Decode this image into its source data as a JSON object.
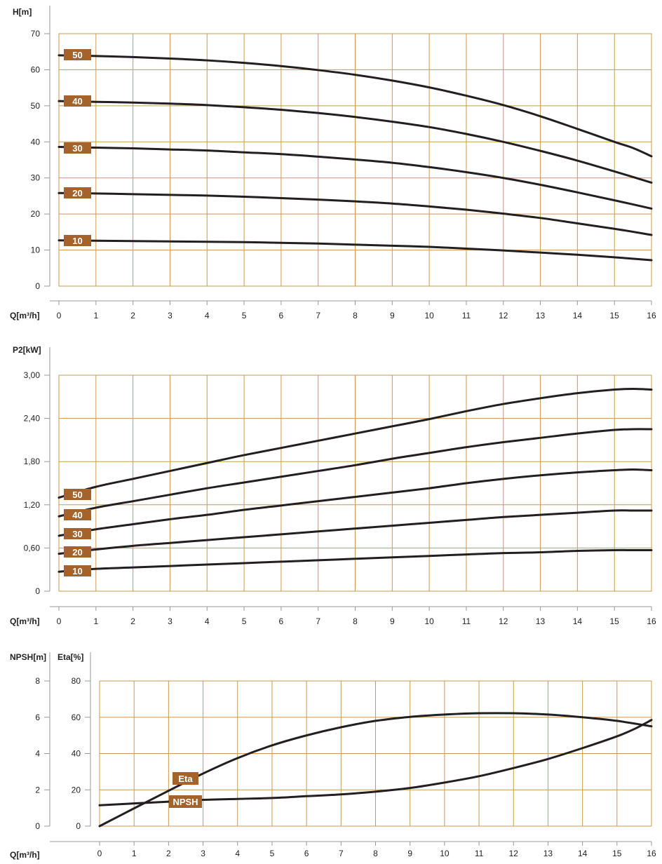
{
  "colors": {
    "grid": "#c89a4e",
    "axis": "#999999",
    "curve": "#231f20",
    "badge": "#a3632a",
    "badge_text": "#ffffff"
  },
  "chart_data": [
    {
      "id": "head",
      "type": "line",
      "title": "",
      "ylabel": "H[m]",
      "xlabel": "Q[m³/h]",
      "xlim": [
        0,
        16
      ],
      "ylim": [
        0,
        70
      ],
      "x_ticks": [
        "0",
        "1",
        "2",
        "3",
        "4",
        "5",
        "6",
        "7",
        "8",
        "9",
        "10",
        "11",
        "12",
        "13",
        "14",
        "15",
        "16"
      ],
      "y_ticks": [
        "0",
        "10",
        "20",
        "30",
        "40",
        "50",
        "60",
        "70"
      ],
      "y_tick_values": [
        0,
        10,
        20,
        30,
        40,
        50,
        60,
        70
      ],
      "series": [
        {
          "name": "50",
          "x": [
            0,
            1,
            2,
            3,
            4,
            5,
            6,
            7,
            8,
            9,
            10,
            11,
            12,
            13,
            14,
            15,
            15.5,
            16
          ],
          "values": [
            64,
            63.8,
            63.5,
            63.1,
            62.6,
            61.9,
            61,
            59.9,
            58.6,
            57,
            55.1,
            52.8,
            50.2,
            47.1,
            43.6,
            40,
            38.3,
            36
          ]
        },
        {
          "name": "40",
          "x": [
            0,
            1,
            2,
            3,
            4,
            5,
            6,
            7,
            8,
            9,
            10,
            11,
            12,
            13,
            14,
            15,
            16
          ],
          "values": [
            51.3,
            51.1,
            50.9,
            50.6,
            50.2,
            49.6,
            48.9,
            48,
            46.9,
            45.6,
            44.1,
            42.2,
            40,
            37.5,
            34.8,
            31.8,
            28.7
          ]
        },
        {
          "name": "30",
          "x": [
            0,
            1,
            2,
            3,
            4,
            5,
            6,
            7,
            8,
            9,
            10,
            11,
            12,
            13,
            14,
            15,
            16
          ],
          "values": [
            38.6,
            38.4,
            38.2,
            37.9,
            37.6,
            37.1,
            36.6,
            35.9,
            35.1,
            34.2,
            33,
            31.6,
            30,
            28.1,
            26,
            23.8,
            21.5
          ]
        },
        {
          "name": "20",
          "x": [
            0,
            1,
            2,
            3,
            4,
            5,
            6,
            7,
            8,
            9,
            10,
            11,
            12,
            13,
            14,
            15,
            16
          ],
          "values": [
            25.8,
            25.7,
            25.5,
            25.3,
            25.1,
            24.8,
            24.4,
            24,
            23.5,
            22.9,
            22.1,
            21.2,
            20.1,
            18.9,
            17.4,
            15.9,
            14.2
          ]
        },
        {
          "name": "10",
          "x": [
            0,
            1,
            2,
            3,
            4,
            5,
            6,
            7,
            8,
            9,
            10,
            11,
            12,
            13,
            14,
            15,
            16
          ],
          "values": [
            12.7,
            12.6,
            12.5,
            12.4,
            12.3,
            12.2,
            12,
            11.8,
            11.5,
            11.2,
            10.9,
            10.4,
            9.9,
            9.3,
            8.7,
            8,
            7.2
          ]
        }
      ],
      "labels": [
        "50",
        "40",
        "30",
        "20",
        "10"
      ]
    },
    {
      "id": "power",
      "type": "line",
      "title": "",
      "ylabel": "P2[kW]",
      "xlabel": "Q[m³/h]",
      "xlim": [
        0,
        16
      ],
      "ylim": [
        0,
        3.0
      ],
      "x_ticks": [
        "0",
        "1",
        "2",
        "3",
        "4",
        "5",
        "6",
        "7",
        "8",
        "9",
        "10",
        "11",
        "12",
        "13",
        "14",
        "15",
        "16"
      ],
      "y_ticks": [
        "0",
        "0,60",
        "1,20",
        "1,80",
        "2,40",
        "3,00"
      ],
      "y_tick_values": [
        0,
        0.6,
        1.2,
        1.8,
        2.4,
        3.0
      ],
      "series": [
        {
          "name": "50",
          "x": [
            0,
            1,
            2,
            3,
            4,
            5,
            6,
            7,
            8,
            9,
            10,
            11,
            12,
            13,
            14,
            15,
            15.5,
            16
          ],
          "values": [
            1.3,
            1.45,
            1.56,
            1.67,
            1.78,
            1.89,
            1.99,
            2.09,
            2.19,
            2.29,
            2.39,
            2.5,
            2.6,
            2.68,
            2.75,
            2.8,
            2.81,
            2.8
          ]
        },
        {
          "name": "40",
          "x": [
            0,
            1,
            2,
            3,
            4,
            5,
            6,
            7,
            8,
            9,
            10,
            11,
            12,
            13,
            14,
            15,
            15.5,
            16
          ],
          "values": [
            1.04,
            1.16,
            1.25,
            1.34,
            1.43,
            1.51,
            1.59,
            1.67,
            1.75,
            1.84,
            1.92,
            2,
            2.07,
            2.13,
            2.19,
            2.24,
            2.25,
            2.25
          ]
        },
        {
          "name": "30",
          "x": [
            0,
            1,
            2,
            3,
            4,
            5,
            6,
            7,
            8,
            9,
            10,
            11,
            12,
            13,
            14,
            15,
            15.5,
            16
          ],
          "values": [
            0.77,
            0.86,
            0.93,
            1,
            1.06,
            1.13,
            1.19,
            1.25,
            1.31,
            1.37,
            1.43,
            1.5,
            1.56,
            1.61,
            1.65,
            1.68,
            1.69,
            1.68
          ]
        },
        {
          "name": "20",
          "x": [
            0,
            1,
            2,
            3,
            4,
            5,
            6,
            7,
            8,
            9,
            10,
            11,
            12,
            13,
            14,
            15,
            15.5,
            16
          ],
          "values": [
            0.52,
            0.58,
            0.63,
            0.67,
            0.71,
            0.75,
            0.79,
            0.83,
            0.87,
            0.91,
            0.95,
            0.99,
            1.03,
            1.06,
            1.09,
            1.12,
            1.12,
            1.12
          ]
        },
        {
          "name": "10",
          "x": [
            0,
            1,
            2,
            3,
            4,
            5,
            6,
            7,
            8,
            9,
            10,
            11,
            12,
            13,
            14,
            15,
            15.5,
            16
          ],
          "values": [
            0.27,
            0.31,
            0.33,
            0.35,
            0.37,
            0.39,
            0.41,
            0.43,
            0.45,
            0.47,
            0.49,
            0.51,
            0.53,
            0.54,
            0.56,
            0.57,
            0.57,
            0.57
          ]
        }
      ],
      "labels": [
        "50",
        "40",
        "30",
        "20",
        "10"
      ]
    },
    {
      "id": "npsh_eta",
      "type": "line",
      "title": "",
      "ylabel_left": "NPSH[m]",
      "ylabel_right": "Eta[%]",
      "xlabel": "Q[m³/h]",
      "xlim": [
        0,
        16
      ],
      "ylim_npsh": [
        0,
        8
      ],
      "ylim_eta": [
        0,
        80
      ],
      "x_ticks": [
        "0",
        "1",
        "2",
        "3",
        "4",
        "5",
        "6",
        "7",
        "8",
        "9",
        "10",
        "11",
        "12",
        "13",
        "14",
        "15",
        "16"
      ],
      "npsh_ticks": [
        "0",
        "2",
        "4",
        "6",
        "8"
      ],
      "npsh_tick_values": [
        0,
        2,
        4,
        6,
        8
      ],
      "eta_ticks": [
        "0",
        "20",
        "40",
        "60",
        "80"
      ],
      "eta_tick_values": [
        0,
        20,
        40,
        60,
        80
      ],
      "series": [
        {
          "name": "Eta",
          "axis": "eta",
          "x": [
            0,
            1,
            2,
            3,
            4,
            5,
            6,
            7,
            8,
            9,
            10,
            11,
            12,
            13,
            14,
            15,
            16
          ],
          "values": [
            0,
            9.8,
            19.5,
            29,
            37.5,
            44.5,
            50,
            54.5,
            58,
            60.2,
            61.5,
            62.2,
            62.2,
            61.5,
            60,
            58,
            55
          ]
        },
        {
          "name": "NPSH",
          "axis": "npsh",
          "x": [
            0,
            1,
            2,
            3,
            4,
            5,
            6,
            7,
            8,
            9,
            10,
            11,
            12,
            13,
            14,
            15,
            15.5,
            16
          ],
          "values": [
            1.15,
            1.25,
            1.35,
            1.45,
            1.5,
            1.55,
            1.65,
            1.75,
            1.9,
            2.1,
            2.4,
            2.75,
            3.2,
            3.7,
            4.3,
            4.95,
            5.35,
            5.85
          ]
        }
      ],
      "labels": [
        "Eta",
        "NPSH"
      ]
    }
  ]
}
